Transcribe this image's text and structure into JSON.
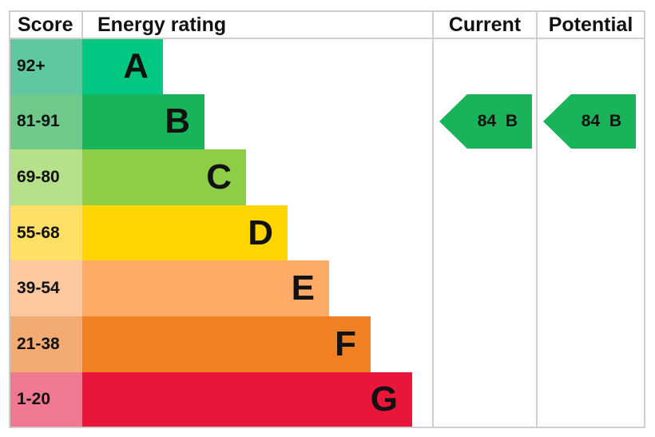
{
  "chart_data": {
    "type": "bar",
    "headers": {
      "score": "Score",
      "rating": "Energy rating",
      "current": "Current",
      "potential": "Potential"
    },
    "bands": [
      {
        "letter": "A",
        "range": "92+",
        "color": "#00c781",
        "score_color": "#5fc8a0"
      },
      {
        "letter": "B",
        "range": "81-91",
        "color": "#19b459",
        "score_color": "#6ec98a"
      },
      {
        "letter": "C",
        "range": "69-80",
        "color": "#8dce46",
        "score_color": "#b6e08a"
      },
      {
        "letter": "D",
        "range": "55-68",
        "color": "#ffd500",
        "score_color": "#ffe066"
      },
      {
        "letter": "E",
        "range": "39-54",
        "color": "#fcaa65",
        "score_color": "#fcc8a0"
      },
      {
        "letter": "F",
        "range": "21-38",
        "color": "#ef8023",
        "score_color": "#f4ab72"
      },
      {
        "letter": "G",
        "range": "1-20",
        "color": "#e9153b",
        "score_color": "#f07890"
      }
    ],
    "current": {
      "value": 84,
      "band": "B",
      "label": "84  B",
      "color": "#19b459"
    },
    "potential": {
      "value": 84,
      "band": "B",
      "label": "84  B",
      "color": "#19b459"
    }
  }
}
